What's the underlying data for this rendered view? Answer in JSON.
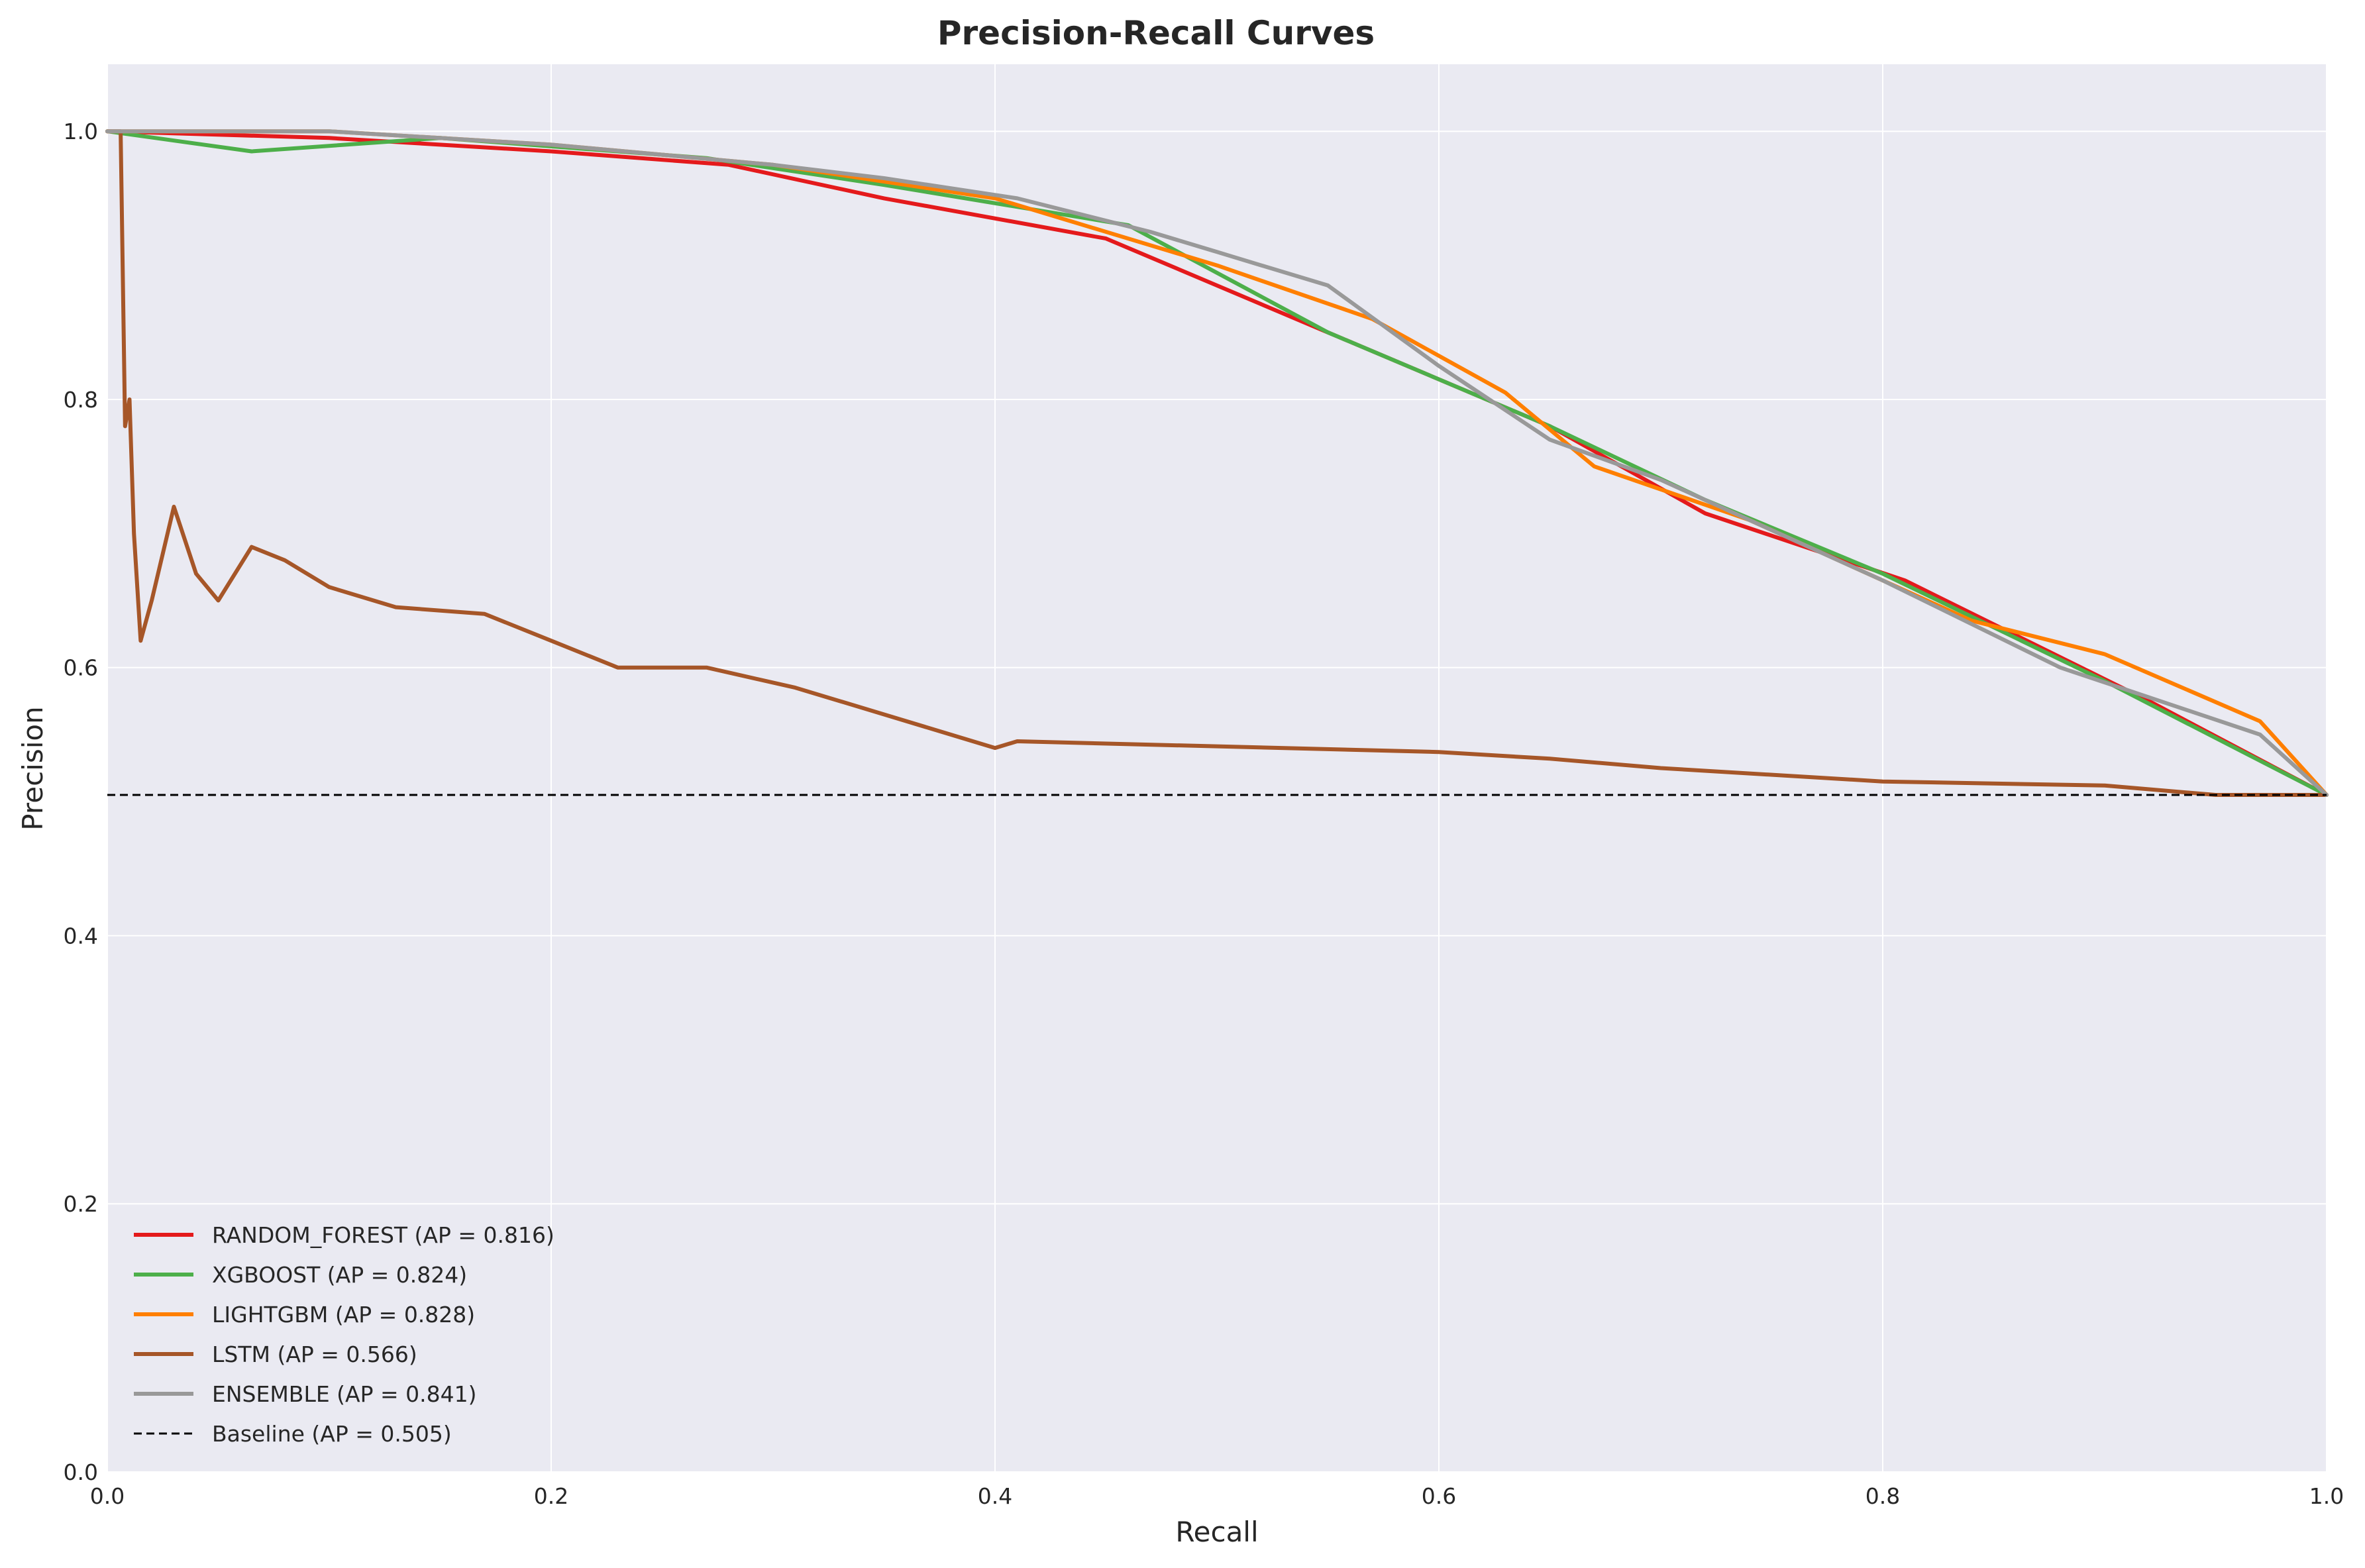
{
  "chart_data": {
    "type": "line",
    "title": "Precision-Recall Curves",
    "xlabel": "Recall",
    "ylabel": "Precision",
    "xlim": [
      0,
      1
    ],
    "ylim": [
      0,
      1.05
    ],
    "xticks": [
      "0.0",
      "0.2",
      "0.4",
      "0.6",
      "0.8",
      "1.0"
    ],
    "yticks": [
      "0.0",
      "0.2",
      "0.4",
      "0.6",
      "0.8",
      "1.0"
    ],
    "grid": true,
    "legend_position": "bottom-left",
    "series": [
      {
        "name": "RANDOM_FOREST (AP = 0.816)",
        "color": "#e41a1c",
        "dashed": false,
        "x": [
          0.0,
          0.1,
          0.2,
          0.28,
          0.35,
          0.45,
          0.55,
          0.65,
          0.72,
          0.81,
          0.92,
          1.0
        ],
        "y": [
          1.0,
          0.995,
          0.985,
          0.975,
          0.95,
          0.92,
          0.85,
          0.78,
          0.715,
          0.665,
          0.575,
          0.505
        ]
      },
      {
        "name": "XGBOOST (AP = 0.824)",
        "color": "#4daf4a",
        "dashed": false,
        "x": [
          0.0,
          0.065,
          0.15,
          0.27,
          0.35,
          0.46,
          0.55,
          0.65,
          0.72,
          0.8,
          0.9,
          1.0
        ],
        "y": [
          1.0,
          0.985,
          0.995,
          0.98,
          0.96,
          0.93,
          0.85,
          0.78,
          0.725,
          0.67,
          0.59,
          0.505
        ]
      },
      {
        "name": "LIGHTGBM (AP = 0.828)",
        "color": "#ff7f00",
        "dashed": false,
        "x": [
          0.0,
          0.1,
          0.2,
          0.3,
          0.4,
          0.5,
          0.57,
          0.63,
          0.67,
          0.74,
          0.84,
          0.9,
          0.97,
          1.0
        ],
        "y": [
          1.0,
          1.0,
          0.99,
          0.975,
          0.95,
          0.9,
          0.86,
          0.805,
          0.75,
          0.71,
          0.635,
          0.61,
          0.56,
          0.505
        ]
      },
      {
        "name": "LSTM (AP = 0.566)",
        "color": "#a65628",
        "dashed": false,
        "x": [
          0.0,
          0.006,
          0.008,
          0.01,
          0.012,
          0.015,
          0.02,
          0.03,
          0.04,
          0.05,
          0.065,
          0.08,
          0.1,
          0.13,
          0.17,
          0.2,
          0.23,
          0.27,
          0.31,
          0.35,
          0.4,
          0.41,
          0.6,
          0.65,
          0.7,
          0.8,
          0.9,
          0.95,
          1.0
        ],
        "y": [
          1.0,
          1.0,
          0.78,
          0.8,
          0.7,
          0.62,
          0.65,
          0.72,
          0.67,
          0.65,
          0.69,
          0.68,
          0.66,
          0.645,
          0.64,
          0.62,
          0.6,
          0.6,
          0.585,
          0.565,
          0.54,
          0.545,
          0.537,
          0.532,
          0.525,
          0.515,
          0.512,
          0.505,
          0.505
        ]
      },
      {
        "name": "ENSEMBLE (AP = 0.841)",
        "color": "#999999",
        "dashed": false,
        "x": [
          0.0,
          0.1,
          0.2,
          0.3,
          0.35,
          0.41,
          0.47,
          0.5,
          0.52,
          0.55,
          0.6,
          0.65,
          0.7,
          0.8,
          0.88,
          0.97,
          1.0
        ],
        "y": [
          1.0,
          1.0,
          0.99,
          0.975,
          0.965,
          0.95,
          0.925,
          0.91,
          0.9,
          0.885,
          0.825,
          0.77,
          0.74,
          0.665,
          0.6,
          0.55,
          0.505
        ]
      },
      {
        "name": "Baseline (AP = 0.505)",
        "color": "#000000",
        "dashed": true,
        "x": [
          0.0,
          1.0
        ],
        "y": [
          0.505,
          0.505
        ]
      }
    ]
  }
}
